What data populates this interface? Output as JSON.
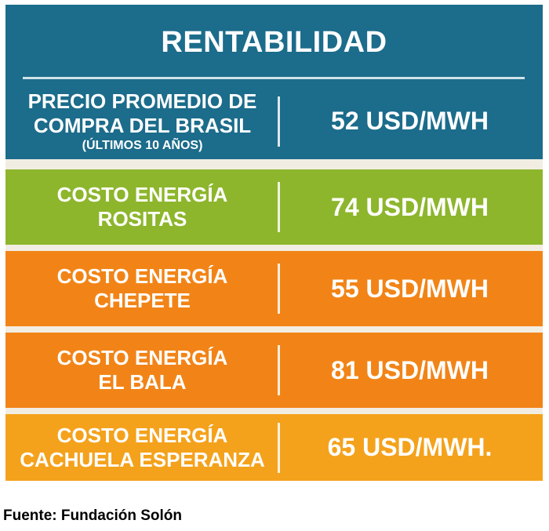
{
  "title": "RENTABILIDAD",
  "header_row": {
    "label_line1": "PRECIO PROMEDIO DE",
    "label_line2": "COMPRA DEL BRASIL",
    "label_sub": "(ÚLTIMOS 10 AÑOS)",
    "value": "52 USD/MWH"
  },
  "rows": [
    {
      "line1": "COSTO ENERGÍA",
      "line2": "ROSITAS",
      "value": "74 USD/MWH",
      "color": "#8db62c"
    },
    {
      "line1": "COSTO ENERGÍA",
      "line2": "CHEPETE",
      "value": "55 USD/MWH",
      "color": "#f28417"
    },
    {
      "line1": "COSTO ENERGÍA",
      "line2": "EL BALA",
      "value": "81 USD/MWH",
      "color": "#f28417"
    },
    {
      "line1": "COSTO ENERGÍA",
      "line2": "CACHUELA ESPERANZA",
      "value": "65 USD/MWH.",
      "color": "#f4a21c"
    }
  ],
  "header_color": "#1c6c8b",
  "footer": "Fuente: Fundación Solón"
}
